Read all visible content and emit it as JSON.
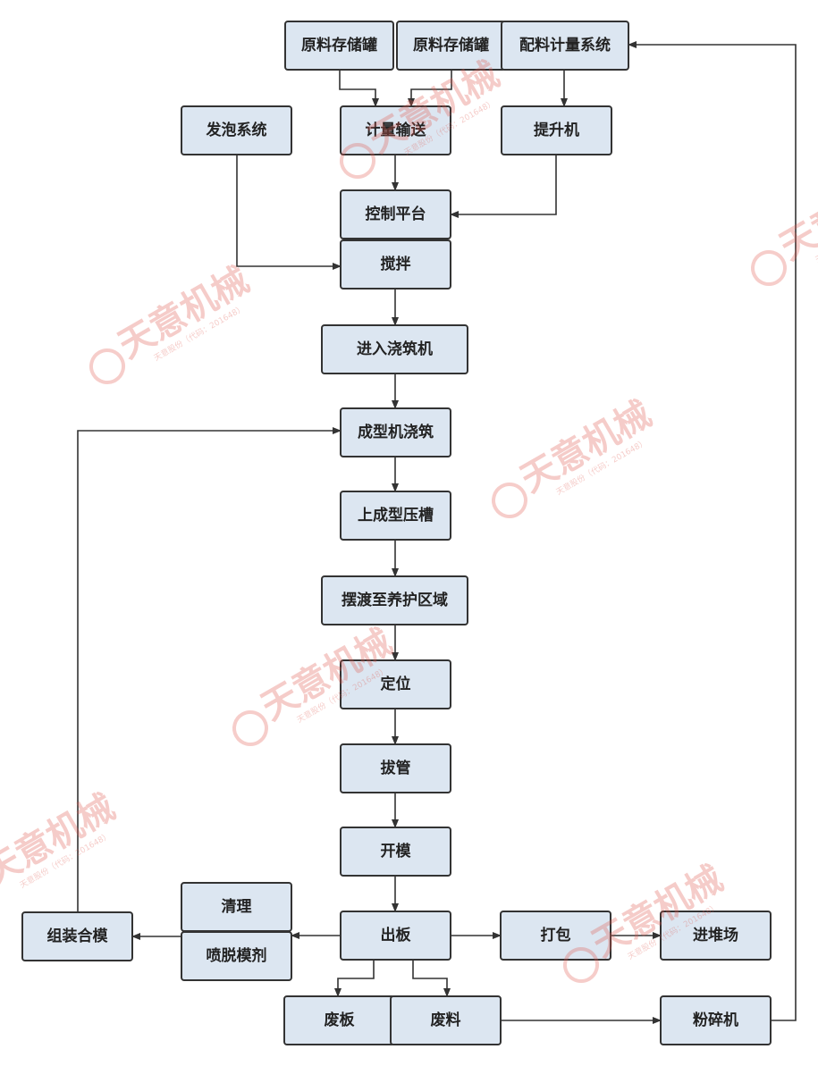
{
  "nodes": [
    {
      "label": "原料存储罐"
    },
    {
      "label": "原料存储罐"
    },
    {
      "label": "配料计量系统"
    },
    {
      "label": "发泡系统"
    },
    {
      "label": "计量输送"
    },
    {
      "label": "提升机"
    },
    {
      "label": "控制平台"
    },
    {
      "label": "搅拌"
    },
    {
      "label": "进入浇筑机"
    },
    {
      "label": "成型机浇筑"
    },
    {
      "label": "上成型压槽"
    },
    {
      "label": "摆渡至养护区域"
    },
    {
      "label": "定位"
    },
    {
      "label": "拔管"
    },
    {
      "label": "开模"
    },
    {
      "label": "清理"
    },
    {
      "label": "喷脱模剂"
    },
    {
      "label": "组装合模"
    },
    {
      "label": "出板"
    },
    {
      "label": "打包"
    },
    {
      "label": "进堆场"
    },
    {
      "label": "废板"
    },
    {
      "label": "废料"
    },
    {
      "label": "粉碎机"
    }
  ],
  "watermark": {
    "brand": "天意机械",
    "company": "天意股份（代码：201648）"
  }
}
